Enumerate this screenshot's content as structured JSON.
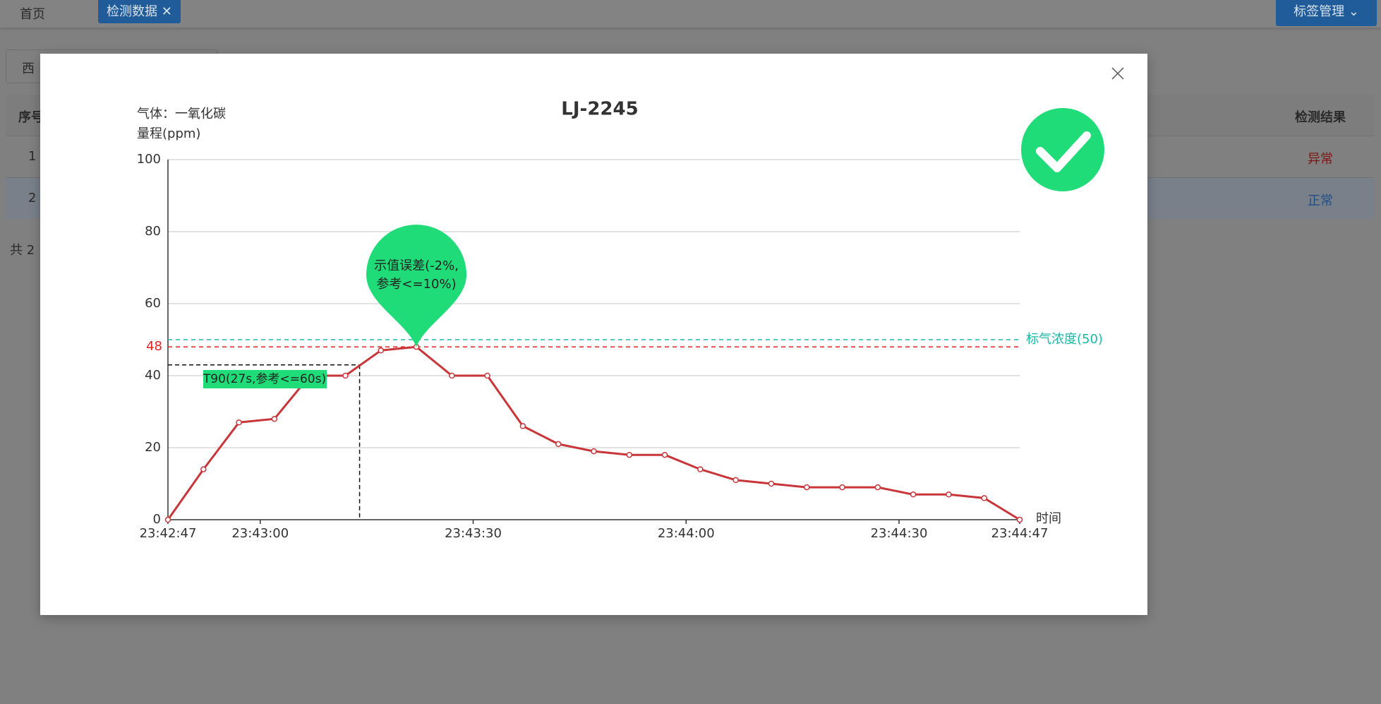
{
  "page": {
    "tabs": [
      "首页",
      "检测数据"
    ],
    "tag_button": "标签管理",
    "filter_text": "西",
    "table": {
      "headers": [
        "序号",
        "检测结果"
      ],
      "rows": [
        [
          "1",
          "异常"
        ],
        [
          "2",
          "正常"
        ]
      ]
    },
    "total": "共 2"
  },
  "chart_data": {
    "type": "line",
    "title": "LJ-2245",
    "gas_label": "气体：一氧化碳",
    "ylabel": "量程(ppm)",
    "xlabel": "时间",
    "x": [
      "23:42:47",
      "23:42:52",
      "23:42:57",
      "23:43:02",
      "23:43:07",
      "23:43:12",
      "23:43:17",
      "23:43:22",
      "23:43:27",
      "23:43:32",
      "23:43:37",
      "23:43:42",
      "23:43:47",
      "23:43:52",
      "23:43:57",
      "23:44:02",
      "23:44:07",
      "23:44:12",
      "23:44:17",
      "23:44:22",
      "23:44:27",
      "23:44:32",
      "23:44:37",
      "23:44:42",
      "23:44:47"
    ],
    "values": [
      0,
      14,
      27,
      28,
      40,
      40,
      47,
      48,
      40,
      40,
      26,
      21,
      19,
      18,
      18,
      14,
      11,
      10,
      9,
      9,
      9,
      7,
      7,
      6,
      0
    ],
    "color": "#c8363a",
    "xlim": [
      "23:42:47",
      "23:44:47"
    ],
    "xticks": [
      "23:42:47",
      "23:43:00",
      "23:43:30",
      "23:44:00",
      "23:44:30",
      "23:44:47"
    ],
    "ylim": [
      0,
      100
    ],
    "yticks": [
      0,
      20,
      40,
      60,
      80,
      100
    ],
    "grid": true,
    "mark_lines": [
      {
        "value": 50,
        "label": "标气浓度(50)",
        "color": "#19b9a6"
      },
      {
        "value": 48,
        "label": "48",
        "color": "#e52222"
      }
    ],
    "t90": {
      "x": "23:43:14",
      "y": 43,
      "label": "T90(27s,参考<=60s)"
    },
    "pin": {
      "x": "23:43:22",
      "y": 48,
      "label": [
        "示值误差(-2%,",
        "参考<=10%)"
      ],
      "color": "#1fdc78"
    }
  }
}
